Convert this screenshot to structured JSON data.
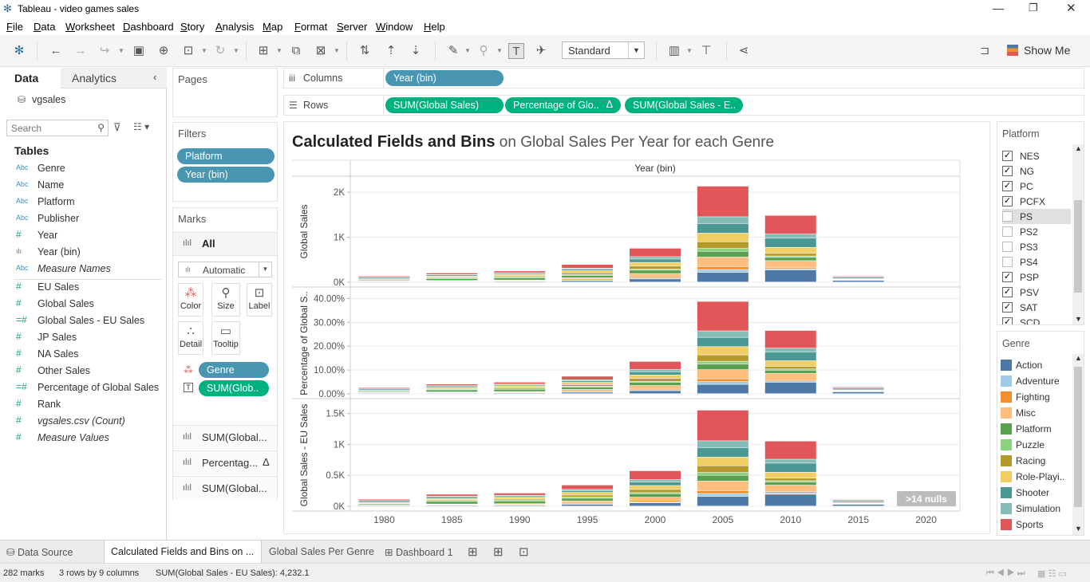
{
  "window": {
    "title": "Tableau - video games sales"
  },
  "menu": [
    "File",
    "Data",
    "Worksheet",
    "Dashboard",
    "Story",
    "Analysis",
    "Map",
    "Format",
    "Server",
    "Window",
    "Help"
  ],
  "toolbar": {
    "standard_label": "Standard",
    "show_me_label": "Show Me"
  },
  "data_pane": {
    "tab_data": "Data",
    "tab_analytics": "Analytics",
    "datasource": "vgsales",
    "search_placeholder": "Search",
    "tables_heading": "Tables",
    "dimensions": [
      {
        "icon": "Abc",
        "name": "Genre"
      },
      {
        "icon": "Abc",
        "name": "Name"
      },
      {
        "icon": "Abc",
        "name": "Platform"
      },
      {
        "icon": "Abc",
        "name": "Publisher"
      },
      {
        "icon": "#",
        "name": "Year"
      },
      {
        "icon": "ılı",
        "name": "Year (bin)"
      },
      {
        "icon": "Abc",
        "name": "Measure Names",
        "italic": true
      }
    ],
    "measures": [
      {
        "icon": "#",
        "name": "EU Sales"
      },
      {
        "icon": "#",
        "name": "Global Sales"
      },
      {
        "icon": "=#",
        "name": "Global Sales - EU Sales"
      },
      {
        "icon": "#",
        "name": "JP Sales"
      },
      {
        "icon": "#",
        "name": "NA Sales"
      },
      {
        "icon": "#",
        "name": "Other Sales"
      },
      {
        "icon": "=#",
        "name": "Percentage of Global Sales"
      },
      {
        "icon": "#",
        "name": "Rank"
      },
      {
        "icon": "#",
        "name": "vgsales.csv (Count)",
        "italic": true
      },
      {
        "icon": "#",
        "name": "Measure Values",
        "italic": true
      }
    ]
  },
  "pages": {
    "label": "Pages"
  },
  "filters": {
    "label": "Filters",
    "pills": [
      "Platform",
      "Year (bin)"
    ]
  },
  "marks": {
    "label": "Marks",
    "all_label": "All",
    "mark_type": "Automatic",
    "buttons": [
      "Color",
      "Size",
      "Label",
      "Detail",
      "Tooltip"
    ],
    "pills": [
      {
        "type": "color",
        "label": "Genre"
      },
      {
        "type": "label",
        "label": "SUM(Glob.."
      }
    ],
    "measure_rows": [
      "SUM(Global...",
      "Percentag...",
      "SUM(Global..."
    ],
    "delta": "Δ"
  },
  "shelves": {
    "columns_label": "Columns",
    "rows_label": "Rows",
    "columns_pills": [
      "Year (bin)"
    ],
    "rows_pills": [
      "SUM(Global Sales)",
      "Percentage of Glo..",
      "SUM(Global Sales - E.."
    ],
    "rows_delta": "Δ"
  },
  "chart_data": {
    "type": "bar",
    "stacked": true,
    "title_bold": "Calculated Fields and Bins",
    "title_rest": " on Global Sales Per Year for each Genre",
    "column_header": "Year (bin)",
    "categories": [
      "1980",
      "1985",
      "1990",
      "1995",
      "2000",
      "2005",
      "2010",
      "2015",
      "2020"
    ],
    "panes": [
      {
        "ylabel": "Global Sales",
        "ticks": [
          "2K",
          "1K",
          "0K"
        ],
        "tick_values": [
          2000,
          1000,
          0
        ],
        "ylim": [
          0,
          2250
        ],
        "totals": [
          130,
          200,
          245,
          390,
          750,
          2130,
          1480,
          130,
          0
        ]
      },
      {
        "ylabel": "Percentage of Global S..",
        "ticks": [
          "40.00%",
          "30.00%",
          "20.00%",
          "10.00%",
          "0.00%"
        ],
        "tick_values": [
          40,
          30,
          20,
          10,
          0
        ],
        "ylim": [
          0,
          42.5
        ],
        "totals": [
          2.5,
          4.0,
          4.8,
          7.3,
          13.5,
          38.7,
          26.5,
          2.8,
          0
        ]
      },
      {
        "ylabel": "Global Sales - EU Sales",
        "ticks": [
          "1.5K",
          "1K",
          "0.5K",
          "0K"
        ],
        "tick_values": [
          1500,
          1000,
          500,
          0
        ],
        "ylim": [
          0,
          1650
        ],
        "totals": [
          110,
          190,
          210,
          340,
          570,
          1550,
          1050,
          100,
          0
        ]
      }
    ],
    "series": [
      {
        "name": "Action",
        "color": "#4e79a7",
        "share": [
          0.1,
          0.06,
          0.06,
          0.08,
          0.09,
          0.1,
          0.18,
          0.27,
          0
        ]
      },
      {
        "name": "Adventure",
        "color": "#a0cbe8",
        "share": [
          0.02,
          0.02,
          0.02,
          0.03,
          0.03,
          0.03,
          0.02,
          0.05,
          0
        ]
      },
      {
        "name": "Fighting",
        "color": "#f28e2b",
        "share": [
          0.03,
          0.04,
          0.05,
          0.06,
          0.04,
          0.03,
          0.02,
          0.03,
          0
        ]
      },
      {
        "name": "Misc",
        "color": "#ffbe7d",
        "share": [
          0.04,
          0.05,
          0.05,
          0.07,
          0.09,
          0.1,
          0.1,
          0.04,
          0
        ]
      },
      {
        "name": "Platform",
        "color": "#59a14f",
        "share": [
          0.15,
          0.22,
          0.2,
          0.13,
          0.1,
          0.06,
          0.05,
          0.04,
          0
        ]
      },
      {
        "name": "Puzzle",
        "color": "#8cd17d",
        "share": [
          0.05,
          0.08,
          0.1,
          0.05,
          0.03,
          0.03,
          0.02,
          0.02,
          0
        ]
      },
      {
        "name": "Racing",
        "color": "#b6992d",
        "share": [
          0.1,
          0.08,
          0.08,
          0.1,
          0.09,
          0.07,
          0.04,
          0.03,
          0
        ]
      },
      {
        "name": "Role-Playing",
        "color": "#f1ce63",
        "share": [
          0.05,
          0.1,
          0.12,
          0.13,
          0.11,
          0.09,
          0.09,
          0.1,
          0
        ]
      },
      {
        "name": "Shooter",
        "color": "#499894",
        "share": [
          0.22,
          0.14,
          0.1,
          0.08,
          0.1,
          0.1,
          0.14,
          0.22,
          0
        ]
      },
      {
        "name": "Simulation",
        "color": "#86bcb6",
        "share": [
          0.04,
          0.04,
          0.05,
          0.06,
          0.07,
          0.07,
          0.06,
          0.04,
          0
        ]
      },
      {
        "name": "Sports",
        "color": "#e15759",
        "share": [
          0.2,
          0.17,
          0.17,
          0.21,
          0.25,
          0.32,
          0.28,
          0.16,
          0
        ]
      }
    ],
    "nulls_badge": ">14 nulls"
  },
  "platform_filter": {
    "title": "Platform",
    "items": [
      {
        "label": "NES",
        "checked": true
      },
      {
        "label": "NG",
        "checked": true
      },
      {
        "label": "PC",
        "checked": true
      },
      {
        "label": "PCFX",
        "checked": true
      },
      {
        "label": "PS",
        "checked": false
      },
      {
        "label": "PS2",
        "checked": false
      },
      {
        "label": "PS3",
        "checked": false
      },
      {
        "label": "PS4",
        "checked": false
      },
      {
        "label": "PSP",
        "checked": true
      },
      {
        "label": "PSV",
        "checked": true
      },
      {
        "label": "SAT",
        "checked": true
      },
      {
        "label": "SCD",
        "checked": true
      }
    ]
  },
  "genre_legend": {
    "title": "Genre",
    "items": [
      {
        "label": "Action",
        "color": "#4e79a7"
      },
      {
        "label": "Adventure",
        "color": "#a0cbe8"
      },
      {
        "label": "Fighting",
        "color": "#f28e2b"
      },
      {
        "label": "Misc",
        "color": "#ffbe7d"
      },
      {
        "label": "Platform",
        "color": "#59a14f"
      },
      {
        "label": "Puzzle",
        "color": "#8cd17d"
      },
      {
        "label": "Racing",
        "color": "#b6992d"
      },
      {
        "label": "Role-Playi..",
        "color": "#f1ce63"
      },
      {
        "label": "Shooter",
        "color": "#499894"
      },
      {
        "label": "Simulation",
        "color": "#86bcb6"
      },
      {
        "label": "Sports",
        "color": "#e15759"
      }
    ]
  },
  "sheet_tabs": {
    "data_source": "Data Source",
    "tabs": [
      "Calculated Fields and Bins on ...",
      "Global Sales Per Genre",
      "Dashboard 1"
    ]
  },
  "status": {
    "marks": "282 marks",
    "dims": "3 rows by 9 columns",
    "sum": "SUM(Global Sales - EU Sales): 4,232.1"
  }
}
